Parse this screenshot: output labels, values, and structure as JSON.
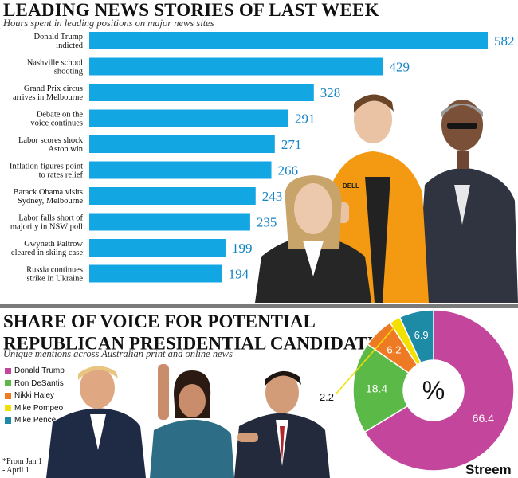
{
  "section1": {
    "title": "LEADING NEWS STORIES OF LAST WEEK",
    "subtitle": "Hours spent in leading positions on major news sites"
  },
  "section2": {
    "title_line1": "SHARE OF VOICE FOR POTENTIAL",
    "title_line2": "REPUBLICAN PRESIDENTIAL CANDIDATES",
    "title_mark": "*",
    "subtitle": "Unique mentions across Australian print and online news",
    "footnote_line1": "*From Jan 1",
    "footnote_line2": "- April 1"
  },
  "brand": "Streem",
  "colors": {
    "bar": "#12a6e3",
    "bar_value": "#1583c4"
  },
  "chart_data": [
    {
      "type": "bar",
      "orientation": "horizontal",
      "title": "LEADING NEWS STORIES OF LAST WEEK",
      "subtitle": "Hours spent in leading positions on major news sites",
      "categories": [
        [
          "Donald Trump",
          "indicted"
        ],
        [
          "Nashville school",
          "shooting"
        ],
        [
          "Grand Prix circus",
          "arrives in Melbourne"
        ],
        [
          "Debate on the",
          "voice continues"
        ],
        [
          "Labor scores shock",
          "Aston win"
        ],
        [
          "Inflation figures point",
          "to rates relief"
        ],
        [
          "Barack Obama visits",
          "Sydney, Melbourne"
        ],
        [
          "Labor falls short of",
          "majority in NSW poll"
        ],
        [
          "Gwyneth Paltrow",
          "cleared in skiing case"
        ],
        [
          "Russia continues",
          "strike in Ukraine"
        ]
      ],
      "values": [
        582,
        429,
        328,
        291,
        271,
        266,
        243,
        235,
        199,
        194
      ],
      "xlim": [
        0,
        582
      ]
    },
    {
      "type": "pie",
      "subtype": "donut",
      "center_label": "%",
      "labels": [
        "Donald Trump",
        "Ron DeSantis",
        "Nikki Haley",
        "Mike Pompeo",
        "Mike Pence"
      ],
      "values": [
        66.4,
        18.4,
        6.2,
        2.2,
        6.9
      ],
      "value_labels": [
        "66.4",
        "18.4",
        "6.2",
        "2.2",
        "6.9"
      ],
      "colors": [
        "#c4469c",
        "#5bb947",
        "#ee7a24",
        "#f2e000",
        "#1d8aa6"
      ],
      "legend_position": "left"
    }
  ]
}
